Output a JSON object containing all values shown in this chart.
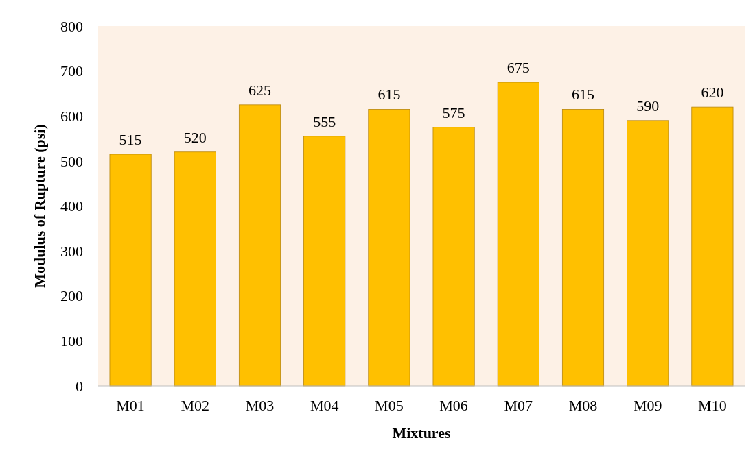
{
  "chart_data": {
    "type": "bar",
    "xlabel": "Mixtures",
    "ylabel": "Modulus of Rupture (psi)",
    "categories": [
      "M01",
      "M02",
      "M03",
      "M04",
      "M05",
      "M06",
      "M07",
      "M08",
      "M09",
      "M10"
    ],
    "values": [
      515,
      520,
      625,
      555,
      615,
      575,
      675,
      615,
      590,
      620
    ],
    "color": "#ffc000",
    "ylim": [
      0,
      800
    ],
    "yticks": [
      0,
      100,
      200,
      300,
      400,
      500,
      600,
      700,
      800
    ],
    "data_labels": true
  }
}
